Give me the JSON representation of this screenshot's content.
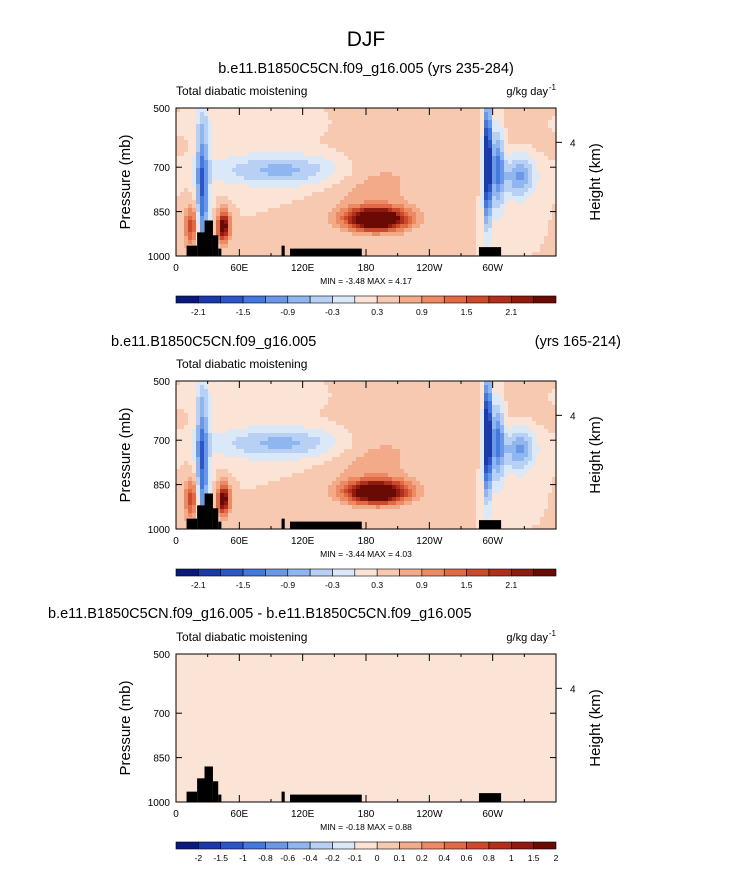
{
  "figure_title": "DJF",
  "chart_data": [
    {
      "type": "heatmap",
      "title": "b.e11.B1850C5CN.f09_g16.005 (yrs 235-284)",
      "title_right": "",
      "subtitle_left": "Total diabatic moistening",
      "units": "g/kg day",
      "units_exp": "-1",
      "ylabel": "Pressure (mb)",
      "ylabel_right": "Height (km)",
      "yticks": [
        "500",
        "700",
        "850",
        "1000"
      ],
      "ytick_pressures": [
        500,
        700,
        850,
        1000
      ],
      "ylim": [
        1000,
        500
      ],
      "xlim": [
        0,
        360
      ],
      "xtick_labels": [
        "0",
        "60E",
        "120E",
        "180",
        "120W",
        "60W"
      ],
      "xtick_longitudes": [
        0,
        60,
        120,
        180,
        240,
        300
      ],
      "right_ticks": [
        "4"
      ],
      "right_tick_pressure": 616,
      "min_max": "MIN = -3.48   MAX =  4.17",
      "colorbar_labels": [
        "-2.1",
        "-1.5",
        "-0.9",
        "-0.3",
        "0.3",
        "0.9",
        "1.5",
        "2.1"
      ],
      "colorbar_label_positions": [
        1,
        3,
        5,
        7,
        9,
        11,
        13,
        15
      ],
      "field_scale": 1.0,
      "features": [
        {
          "lon": 190,
          "p": 875,
          "dlon": 28,
          "dp": 38,
          "amp": 3.4
        },
        {
          "lon": 185,
          "p": 760,
          "dlon": 45,
          "dp": 110,
          "amp": 0.45
        },
        {
          "lon": 25,
          "p": 790,
          "dlon": 6,
          "dp": 260,
          "amp": -1.8
        },
        {
          "lon": 15,
          "p": 900,
          "dlon": 7,
          "dp": 70,
          "amp": 1.4
        },
        {
          "lon": 45,
          "p": 900,
          "dlon": 6,
          "dp": 50,
          "amp": 2.5
        },
        {
          "lon": 100,
          "p": 710,
          "dlon": 65,
          "dp": 55,
          "amp": -1.0
        },
        {
          "lon": 295,
          "p": 680,
          "dlon": 4,
          "dp": 200,
          "amp": -3.0
        },
        {
          "lon": 305,
          "p": 700,
          "dlon": 6,
          "dp": 140,
          "amp": -1.6
        },
        {
          "lon": 325,
          "p": 730,
          "dlon": 15,
          "dp": 75,
          "amp": -1.3
        },
        {
          "lon": 270,
          "p": 600,
          "dlon": 90,
          "dp": 120,
          "amp": 0.2
        },
        {
          "lon": 60,
          "p": 560,
          "dlon": 60,
          "dp": 50,
          "amp": -0.25
        }
      ]
    },
    {
      "type": "heatmap",
      "title": "b.e11.B1850C5CN.f09_g16.005",
      "title_right": "(yrs 165-214)",
      "subtitle_left": "Total diabatic moistening",
      "units": "",
      "units_exp": "",
      "ylabel": "Pressure (mb)",
      "ylabel_right": "Height (km)",
      "yticks": [
        "500",
        "700",
        "850",
        "1000"
      ],
      "ytick_pressures": [
        500,
        700,
        850,
        1000
      ],
      "ylim": [
        1000,
        500
      ],
      "xlim": [
        0,
        360
      ],
      "xtick_labels": [
        "0",
        "60E",
        "120E",
        "180",
        "120W",
        "60W"
      ],
      "xtick_longitudes": [
        0,
        60,
        120,
        180,
        240,
        300
      ],
      "right_ticks": [
        "4"
      ],
      "right_tick_pressure": 616,
      "min_max": "MIN = -3.44   MAX =  4.03",
      "colorbar_labels": [
        "-2.1",
        "-1.5",
        "-0.9",
        "-0.3",
        "0.3",
        "0.9",
        "1.5",
        "2.1"
      ],
      "colorbar_label_positions": [
        1,
        3,
        5,
        7,
        9,
        11,
        13,
        15
      ],
      "field_scale": 1.0,
      "features": [
        {
          "lon": 190,
          "p": 875,
          "dlon": 28,
          "dp": 38,
          "amp": 3.3
        },
        {
          "lon": 185,
          "p": 760,
          "dlon": 45,
          "dp": 110,
          "amp": 0.45
        },
        {
          "lon": 25,
          "p": 790,
          "dlon": 6,
          "dp": 260,
          "amp": -1.8
        },
        {
          "lon": 15,
          "p": 900,
          "dlon": 7,
          "dp": 70,
          "amp": 1.4
        },
        {
          "lon": 45,
          "p": 900,
          "dlon": 6,
          "dp": 50,
          "amp": 2.5
        },
        {
          "lon": 100,
          "p": 710,
          "dlon": 65,
          "dp": 55,
          "amp": -1.0
        },
        {
          "lon": 295,
          "p": 680,
          "dlon": 4,
          "dp": 200,
          "amp": -3.0
        },
        {
          "lon": 305,
          "p": 700,
          "dlon": 6,
          "dp": 140,
          "amp": -1.6
        },
        {
          "lon": 325,
          "p": 730,
          "dlon": 15,
          "dp": 75,
          "amp": -1.3
        },
        {
          "lon": 270,
          "p": 600,
          "dlon": 90,
          "dp": 120,
          "amp": 0.2
        },
        {
          "lon": 60,
          "p": 560,
          "dlon": 60,
          "dp": 50,
          "amp": -0.25
        }
      ]
    },
    {
      "type": "heatmap",
      "title": "b.e11.B1850C5CN.f09_g16.005 - b.e11.B1850C5CN.f09_g16.005",
      "title_right": "",
      "subtitle_left": "Total diabatic moistening",
      "units": "g/kg day",
      "units_exp": "-1",
      "ylabel": "Pressure (mb)",
      "ylabel_right": "Height (km)",
      "yticks": [
        "500",
        "700",
        "850",
        "1000"
      ],
      "ytick_pressures": [
        500,
        700,
        850,
        1000
      ],
      "ylim": [
        1000,
        500
      ],
      "xlim": [
        0,
        360
      ],
      "xtick_labels": [
        "0",
        "60E",
        "120E",
        "180",
        "120W",
        "60W"
      ],
      "xtick_longitudes": [
        0,
        60,
        120,
        180,
        240,
        300
      ],
      "right_ticks": [
        "4"
      ],
      "right_tick_pressure": 616,
      "min_max": "MIN = -0.18   MAX =  0.88",
      "colorbar_labels": [
        "-2",
        "-1.5",
        "-1",
        "-0.8",
        "-0.6",
        "-0.4",
        "-0.2",
        "-0.1",
        "0",
        "0.1",
        "0.2",
        "0.4",
        "0.6",
        "0.8",
        "1",
        "1.5",
        "2"
      ],
      "colorbar_label_positions": [
        1,
        2,
        3,
        4,
        5,
        6,
        7,
        8,
        9,
        10,
        11,
        12,
        13,
        14,
        15,
        16,
        17
      ],
      "field_scale": 1.0,
      "features": [
        {
          "lon": 20,
          "p": 750,
          "dlon": 25,
          "dp": 300,
          "amp": 0.08
        },
        {
          "lon": 160,
          "p": 700,
          "dlon": 80,
          "dp": 250,
          "amp": -0.07
        },
        {
          "lon": 250,
          "p": 800,
          "dlon": 30,
          "dp": 200,
          "amp": 0.06
        },
        {
          "lon": 310,
          "p": 750,
          "dlon": 30,
          "dp": 200,
          "amp": -0.06
        }
      ]
    }
  ],
  "topography": [
    {
      "lon0": 10,
      "lon1": 20,
      "p": 965
    },
    {
      "lon0": 20,
      "lon1": 27,
      "p": 920
    },
    {
      "lon0": 27,
      "lon1": 35,
      "p": 880
    },
    {
      "lon0": 35,
      "lon1": 40,
      "p": 930
    },
    {
      "lon0": 40,
      "lon1": 43,
      "p": 975
    },
    {
      "lon0": 100,
      "lon1": 103,
      "p": 965
    },
    {
      "lon0": 108,
      "lon1": 176,
      "p": 975
    },
    {
      "lon0": 287,
      "lon1": 308,
      "p": 970
    }
  ],
  "palette": {
    "colors": [
      "#0a1a7a",
      "#1a3aa8",
      "#2c56c8",
      "#4478dc",
      "#6a98e6",
      "#90b6ef",
      "#b8d0f4",
      "#dbe8f8",
      "#fbe4d6",
      "#f7c9b0",
      "#f3aa88",
      "#ec8a64",
      "#e06a46",
      "#cc4a2c",
      "#b0301c",
      "#8e1a10",
      "#6a0a05"
    ],
    "thresholds": [
      -2.1,
      -1.8,
      -1.5,
      -1.2,
      -0.9,
      -0.6,
      -0.3,
      0.0,
      0.3,
      0.6,
      0.9,
      1.2,
      1.5,
      1.8,
      2.1
    ],
    "diff_thresholds": [
      -2,
      -1.5,
      -1,
      -0.8,
      -0.6,
      -0.4,
      -0.2,
      -0.1,
      0,
      0.1,
      0.2,
      0.4,
      0.6,
      0.8,
      1,
      1.5,
      2
    ],
    "terrain": "#000000"
  }
}
